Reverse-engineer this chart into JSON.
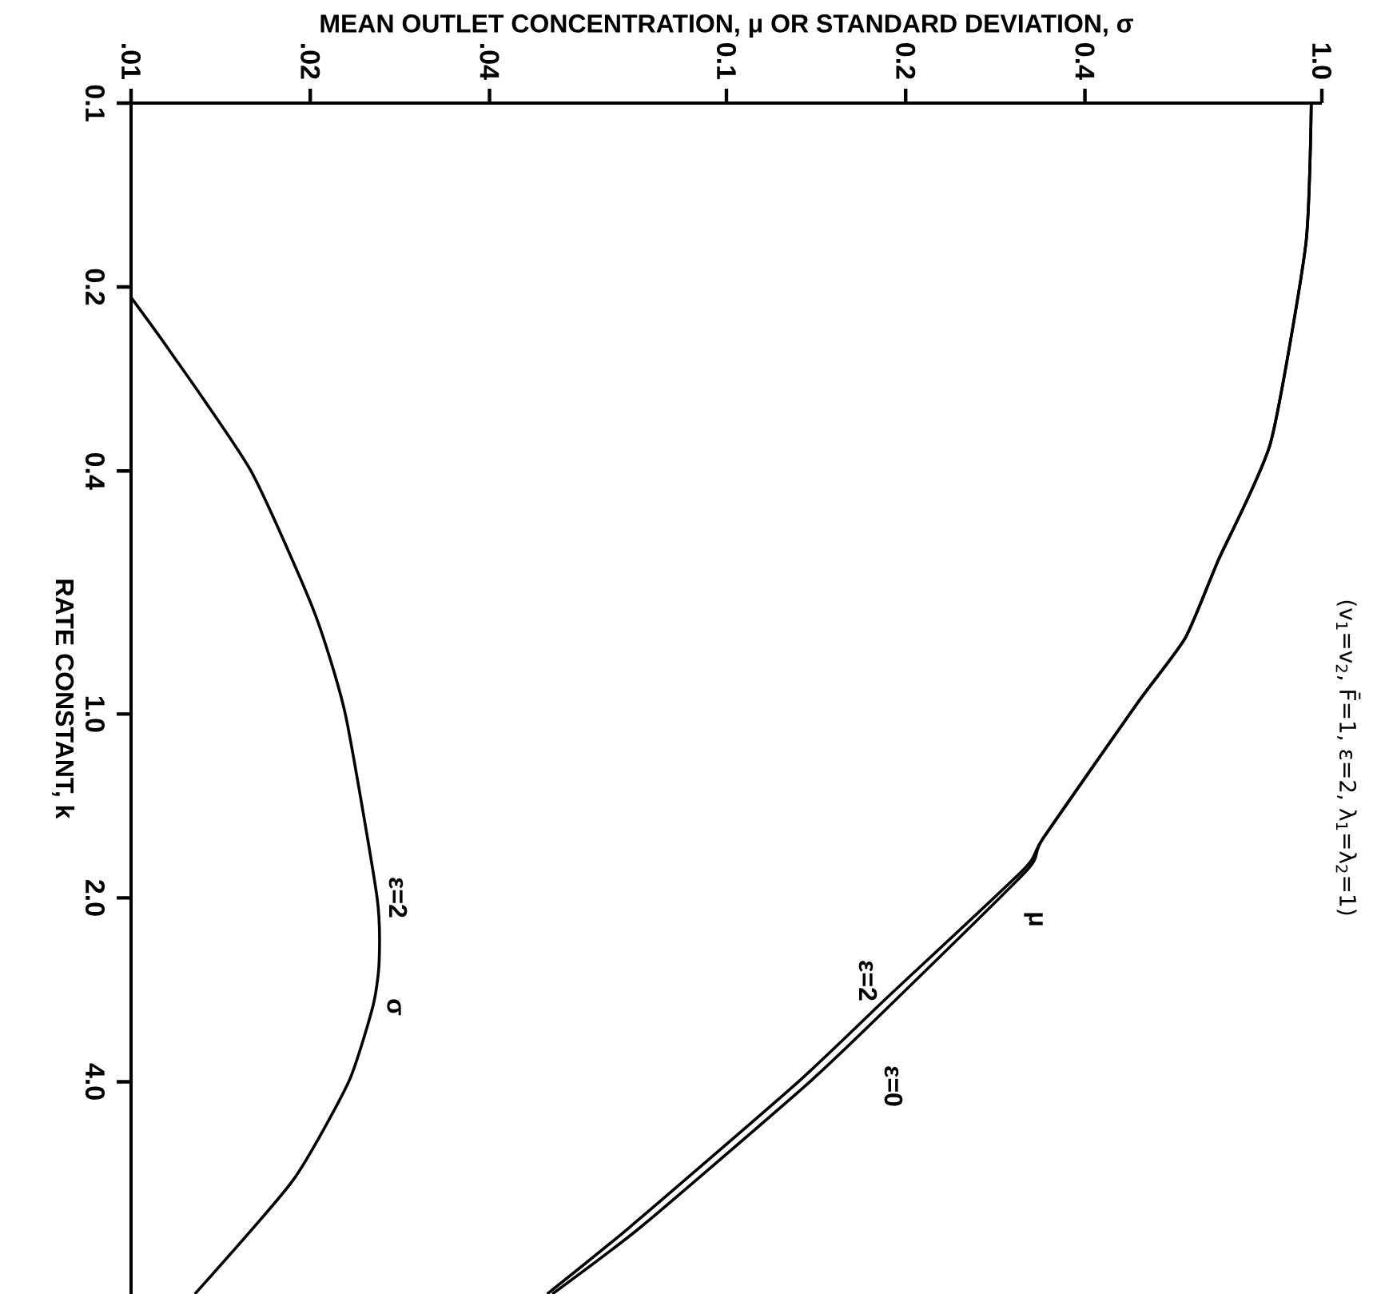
{
  "chart_data": {
    "type": "line",
    "xlabel": "MEAN OUTLET CONCENTRATION, μ OR STANDARD DEVIATION, σ",
    "ylabel": "RATE CONSTANT, k",
    "log": "xy",
    "line_style": "solid",
    "xlim": [
      0.01,
      1.0
    ],
    "ylim": [
      8.9,
      0.1
    ],
    "xticks": [
      {
        "value": 0.01,
        "label": ".01"
      },
      {
        "value": 0.02,
        "label": ".02"
      },
      {
        "value": 0.04,
        "label": ".04"
      },
      {
        "value": 0.1,
        "label": "0.1"
      },
      {
        "value": 0.2,
        "label": "0.2"
      },
      {
        "value": 0.4,
        "label": "0.4"
      },
      {
        "value": 1.0,
        "label": "1.0"
      }
    ],
    "yticks": [
      {
        "value": 0.1,
        "label": "0.1"
      },
      {
        "value": 0.2,
        "label": "0.2"
      },
      {
        "value": 0.4,
        "label": "0.4"
      },
      {
        "value": 1.0,
        "label": "1.0"
      },
      {
        "value": 2.0,
        "label": "2.0"
      },
      {
        "value": 4.0,
        "label": "4.0"
      }
    ],
    "series": [
      {
        "color": "#000000",
        "x": [
          0.96,
          0.94,
          0.82,
          0.67,
          0.59,
          0.49,
          0.34,
          0.32,
          0.195,
          0.138,
          0.072,
          0.051
        ],
        "values": [
          0.1,
          0.17,
          0.36,
          0.56,
          0.75,
          0.96,
          1.6,
          1.8,
          2.9,
          4.0,
          6.9,
          8.9
        ]
      },
      {
        "color": "#000000",
        "x": [
          0.96,
          0.94,
          0.82,
          0.67,
          0.59,
          0.49,
          0.34,
          0.315,
          0.187,
          0.132,
          0.069,
          0.05
        ],
        "values": [
          0.1,
          0.17,
          0.36,
          0.56,
          0.75,
          0.96,
          1.6,
          1.8,
          2.9,
          4.0,
          6.9,
          8.9
        ]
      },
      {
        "color": "#000000",
        "x": [
          0.01,
          0.0116,
          0.0159,
          0.0203,
          0.0229,
          0.0259,
          0.0261,
          0.0255,
          0.0232,
          0.0187,
          0.0128
        ],
        "values": [
          0.208,
          0.254,
          0.4,
          0.68,
          1.0,
          2.0,
          2.55,
          3.0,
          4.0,
          5.8,
          8.9
        ]
      }
    ],
    "annotations": [
      "μ",
      "ε=2",
      "ε=0",
      "σ",
      "ε=2",
      "(v$_{1}$=v$_{2}$, F̄=1, ε=2, λ$_{1}$=λ$_{2}$=1)"
    ]
  }
}
